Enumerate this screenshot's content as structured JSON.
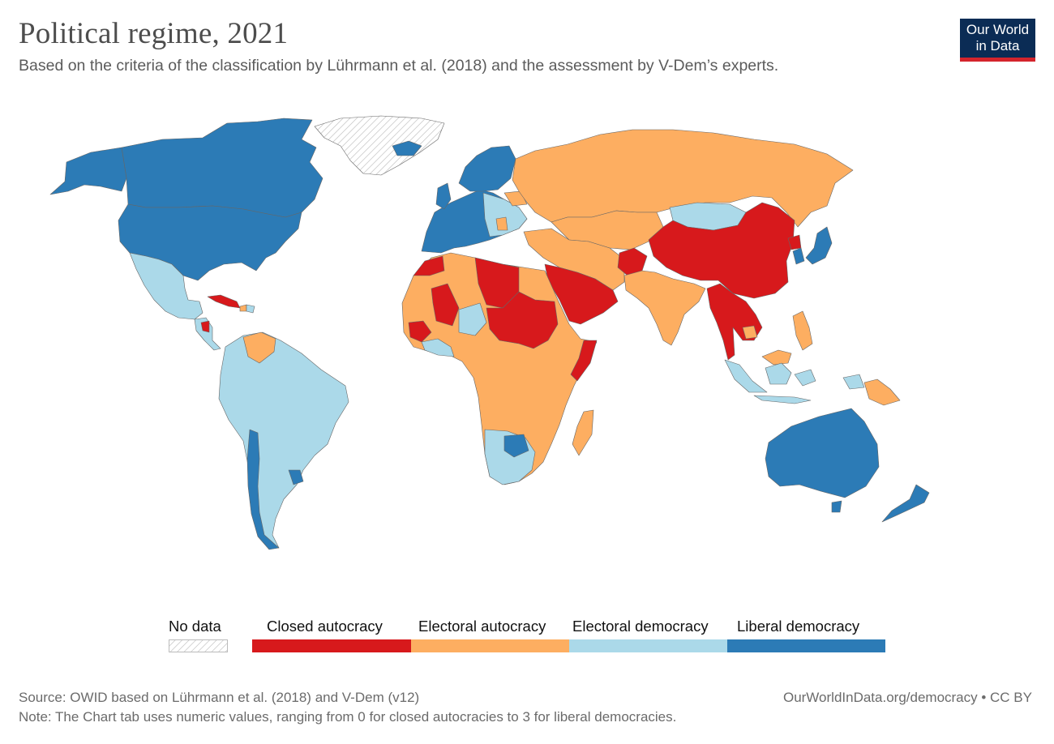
{
  "header": {
    "title": "Political regime, 2021",
    "subtitle": "Based on the criteria of the classification by Lührmann et al. (2018) and the assessment by V-Dem’s experts."
  },
  "logo": {
    "line1": "Our World",
    "line2": "in Data"
  },
  "legend": {
    "no_data": "No data",
    "categories": [
      {
        "label": "Closed autocracy",
        "color": "#d7191c",
        "value": 0
      },
      {
        "label": "Electoral autocracy",
        "color": "#fdae61",
        "value": 1
      },
      {
        "label": "Electoral democracy",
        "color": "#abd9e9",
        "value": 2
      },
      {
        "label": "Liberal democracy",
        "color": "#2c7bb6",
        "value": 3
      }
    ]
  },
  "colors": {
    "closed_autocracy": "#d7191c",
    "electoral_autocracy": "#fdae61",
    "electoral_democracy": "#abd9e9",
    "liberal_democracy": "#2c7bb6",
    "no_data": "#ffffff",
    "border": "#666666"
  },
  "footer": {
    "source": "Source: OWID based on Lührmann et al. (2018) and V-Dem (v12)",
    "url": "OurWorldInData.org/democracy • CC BY",
    "note": "Note: The Chart tab uses numeric values, ranging from 0 for closed autocracies to 3 for liberal democracies."
  }
}
